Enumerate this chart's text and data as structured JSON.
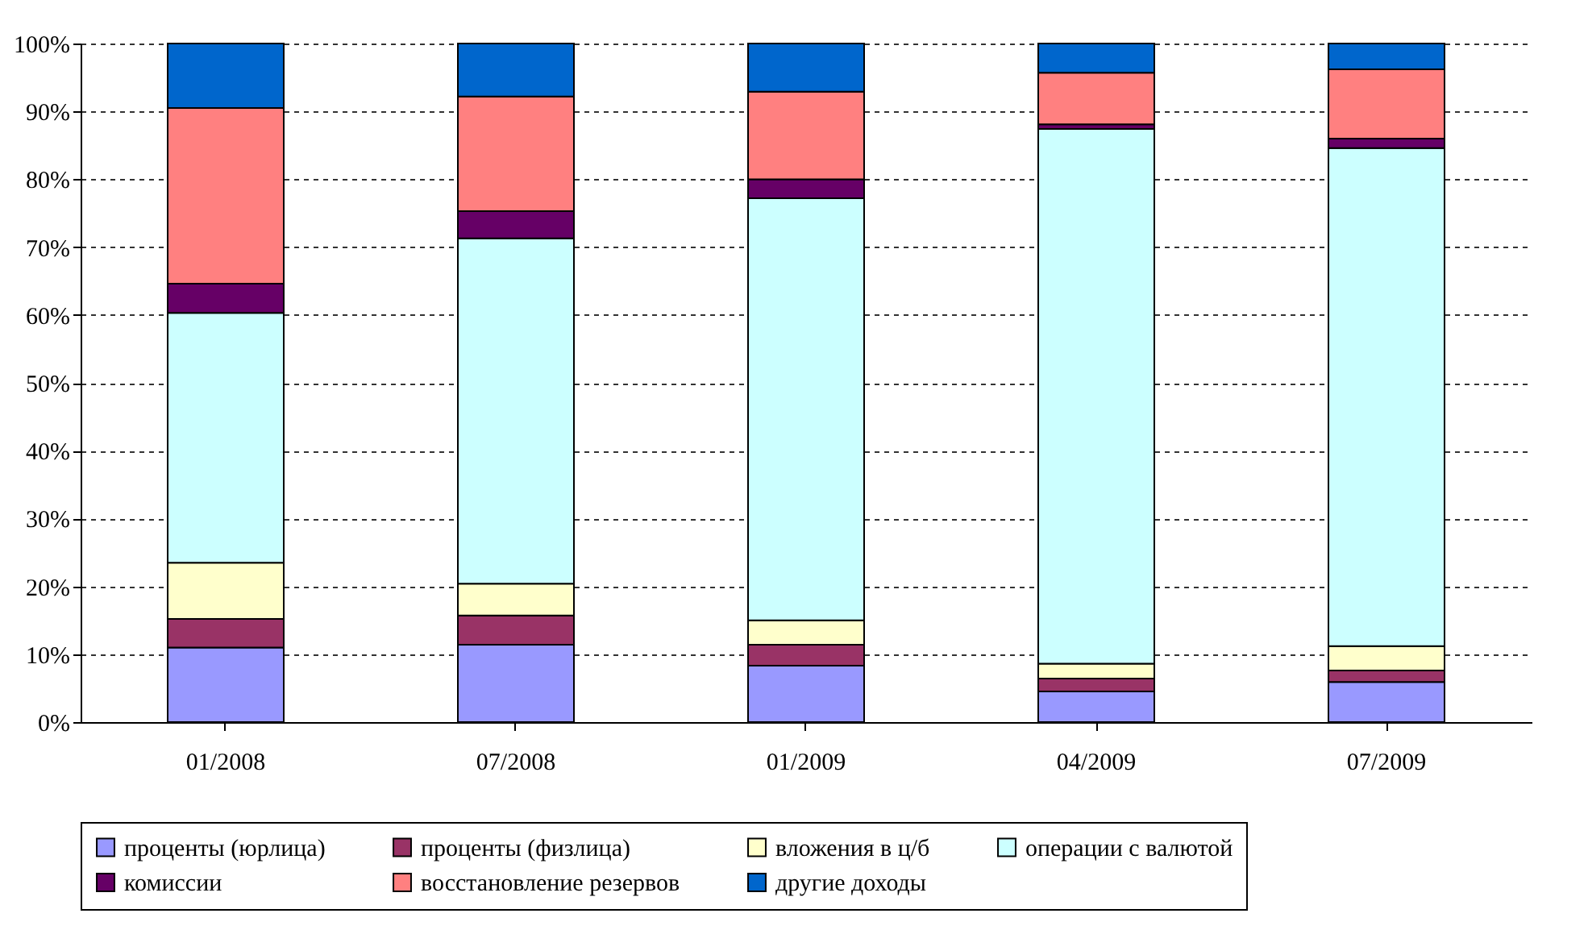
{
  "chart_data": {
    "type": "bar",
    "stacked": true,
    "categories": [
      "01/2008",
      "07/2008",
      "01/2009",
      "04/2009",
      "07/2009"
    ],
    "series": [
      {
        "name": "проценты (юрлица)",
        "color": "#9999ff",
        "values": [
          11,
          11.4,
          8.3,
          4.5,
          5.9
        ]
      },
      {
        "name": "проценты (физлица)",
        "color": "#993366",
        "values": [
          4.2,
          4.3,
          3.1,
          1.9,
          1.7
        ]
      },
      {
        "name": "вложения в ц/б",
        "color": "#ffffcc",
        "values": [
          8.3,
          4.7,
          3.6,
          2.2,
          3.6
        ]
      },
      {
        "name": "операции с валютой",
        "color": "#ccffff",
        "values": [
          36.8,
          50.9,
          62.2,
          78.8,
          73.4
        ]
      },
      {
        "name": "комиссии",
        "color": "#660066",
        "values": [
          4.3,
          4.0,
          2.8,
          0.7,
          1.4
        ]
      },
      {
        "name": "восстановление резервов",
        "color": "#ff8080",
        "values": [
          25.9,
          16.9,
          12.9,
          7.6,
          10.2
        ]
      },
      {
        "name": "другие доходы",
        "color": "#0066cc",
        "values": [
          9.5,
          7.8,
          7.1,
          4.3,
          3.8
        ]
      }
    ],
    "ylim": [
      0,
      100
    ],
    "yticks": [
      {
        "value": 0,
        "label": "0%"
      },
      {
        "value": 10,
        "label": "10%"
      },
      {
        "value": 20,
        "label": "20%"
      },
      {
        "value": 30,
        "label": "30%"
      },
      {
        "value": 40,
        "label": "40%"
      },
      {
        "value": 50,
        "label": "50%"
      },
      {
        "value": 60,
        "label": "60%"
      },
      {
        "value": 70,
        "label": "70%"
      },
      {
        "value": 80,
        "label": "80%"
      },
      {
        "value": 90,
        "label": "90%"
      },
      {
        "value": 100,
        "label": "100%"
      }
    ],
    "grid": "y",
    "legend": "bottom"
  }
}
